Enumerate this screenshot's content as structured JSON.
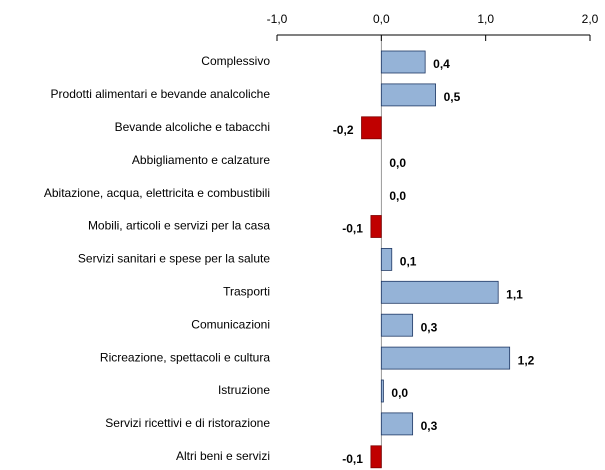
{
  "chart_data": {
    "type": "hbar",
    "categories": [
      "Complessivo",
      "Prodotti alimentari e bevande analcoliche",
      "Bevande alcoliche e tabacchi",
      "Abbigliamento e calzature",
      "Abitazione, acqua, elettricita e combustibili",
      "Mobili, articoli e servizi per la casa",
      "Servizi sanitari e spese per la salute",
      "Trasporti",
      "Comunicazioni",
      "Ricreazione, spettacoli e cultura",
      "Istruzione",
      "Servizi ricettivi e di ristorazione",
      "Altri beni e servizi"
    ],
    "values": [
      0.42,
      0.52,
      -0.19,
      0.0,
      0.0,
      -0.1,
      0.1,
      1.12,
      0.3,
      1.23,
      0.02,
      0.3,
      -0.1
    ],
    "value_labels": [
      "0,4",
      "0,5",
      "-0,2",
      "0,0",
      "0,0",
      "-0,1",
      "0,1",
      "1,1",
      "0,3",
      "1,2",
      "0,0",
      "0,3",
      "-0,1"
    ],
    "color": "#95b3d7",
    "negative_color": "#c00000",
    "xlim": [
      -1,
      2
    ],
    "xticks": [
      {
        "value": -1,
        "label": "-1,0"
      },
      {
        "value": 0,
        "label": "0,0"
      },
      {
        "value": 1,
        "label": "1,0"
      },
      {
        "value": 2,
        "label": "2,0"
      }
    ]
  }
}
